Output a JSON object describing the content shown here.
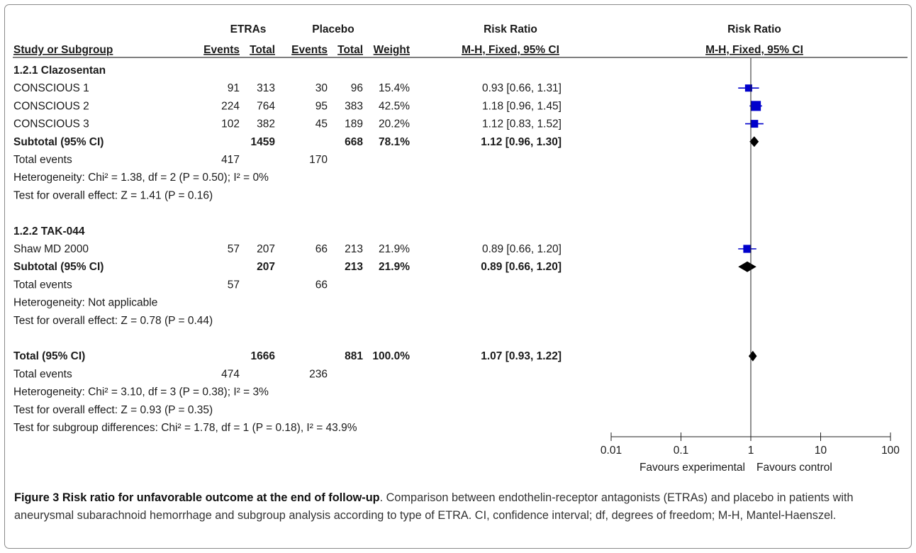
{
  "figure": {
    "caption_title": "Figure 3 Risk ratio for unfavorable outcome at the end of follow-up",
    "caption_body": ". Comparison between endothelin-receptor antagonists (ETRAs) and placebo in patients with aneurysmal subarachnoid hemorrhage and subgroup analysis according to type of ETRA. CI, confidence interval; df, degrees of freedom; M-H, Mantel-Haenszel."
  },
  "header": {
    "group1": "ETRAs",
    "group2": "Placebo",
    "rr_top": "Risk Ratio",
    "plot_top": "Risk Ratio",
    "study": "Study or Subgroup",
    "events1": "Events",
    "total1": "Total",
    "events2": "Events",
    "total2": "Total",
    "weight": "Weight",
    "rr_method": "M-H, Fixed, 95% CI",
    "plot_method": "M-H, Fixed, 95% CI"
  },
  "chart_data": {
    "type": "forest",
    "x_scale": "log",
    "xlim": [
      0.01,
      100
    ],
    "x_ticks": [
      0.01,
      0.1,
      1,
      10,
      100
    ],
    "x_tick_labels": [
      "0.01",
      "0.1",
      "1",
      "10",
      "100"
    ],
    "favours_left": "Favours experimental",
    "favours_right": "Favours control",
    "rows": [
      {
        "kind": "group",
        "label": "1.2.1 Clazosentan"
      },
      {
        "kind": "study",
        "label": "CONSCIOUS 1",
        "e1": "91",
        "t1": "313",
        "e2": "30",
        "t2": "96",
        "weight": "15.4%",
        "ci_text": "0.93 [0.66, 1.31]",
        "rr": 0.93,
        "lo": 0.66,
        "hi": 1.31,
        "w": 15.4
      },
      {
        "kind": "study",
        "label": "CONSCIOUS 2",
        "e1": "224",
        "t1": "764",
        "e2": "95",
        "t2": "383",
        "weight": "42.5%",
        "ci_text": "1.18 [0.96, 1.45]",
        "rr": 1.18,
        "lo": 0.96,
        "hi": 1.45,
        "w": 42.5
      },
      {
        "kind": "study",
        "label": "CONSCIOUS 3",
        "e1": "102",
        "t1": "382",
        "e2": "45",
        "t2": "189",
        "weight": "20.2%",
        "ci_text": "1.12 [0.83, 1.52]",
        "rr": 1.12,
        "lo": 0.83,
        "hi": 1.52,
        "w": 20.2
      },
      {
        "kind": "subtotal",
        "label": "Subtotal (95% CI)",
        "t1": "1459",
        "t2": "668",
        "weight": "78.1%",
        "ci_text": "1.12 [0.96, 1.30]",
        "rr": 1.12,
        "lo": 0.96,
        "hi": 1.3
      },
      {
        "kind": "events",
        "label": "Total events",
        "e1": "417",
        "e2": "170"
      },
      {
        "kind": "note",
        "label": "Heterogeneity: Chi² = 1.38, df = 2 (P = 0.50); I² = 0%"
      },
      {
        "kind": "note",
        "label": "Test for overall effect: Z = 1.41 (P = 0.16)"
      },
      {
        "kind": "blank"
      },
      {
        "kind": "group",
        "label": "1.2.2 TAK-044"
      },
      {
        "kind": "study",
        "label": "Shaw MD 2000",
        "e1": "57",
        "t1": "207",
        "e2": "66",
        "t2": "213",
        "weight": "21.9%",
        "ci_text": "0.89 [0.66, 1.20]",
        "rr": 0.89,
        "lo": 0.66,
        "hi": 1.2,
        "w": 21.9
      },
      {
        "kind": "subtotal",
        "label": "Subtotal (95% CI)",
        "t1": "207",
        "t2": "213",
        "weight": "21.9%",
        "ci_text": "0.89 [0.66, 1.20]",
        "rr": 0.89,
        "lo": 0.66,
        "hi": 1.2
      },
      {
        "kind": "events",
        "label": "Total events",
        "e1": "57",
        "e2": "66"
      },
      {
        "kind": "note",
        "label": "Heterogeneity: Not applicable"
      },
      {
        "kind": "note",
        "label": "Test for overall effect: Z = 0.78 (P = 0.44)"
      },
      {
        "kind": "blank"
      },
      {
        "kind": "subtotal",
        "label": "Total (95% CI)",
        "t1": "1666",
        "t2": "881",
        "weight": "100.0%",
        "ci_text": "1.07 [0.93, 1.22]",
        "rr": 1.07,
        "lo": 0.93,
        "hi": 1.22
      },
      {
        "kind": "events",
        "label": "Total events",
        "e1": "474",
        "e2": "236"
      },
      {
        "kind": "note",
        "label": "Heterogeneity: Chi² = 3.10, df = 3 (P = 0.38); I² = 3%"
      },
      {
        "kind": "note",
        "label": "Test for overall effect: Z = 0.93 (P = 0.35)"
      },
      {
        "kind": "note",
        "label": "Test for subgroup differences: Chi² = 1.78, df = 1 (P = 0.18), I² = 43.9%"
      }
    ],
    "colors": {
      "study_marker": "#0000cc",
      "ci_line": "#0000cc",
      "diamond": "#000000",
      "text": "#1a1a1a"
    }
  }
}
